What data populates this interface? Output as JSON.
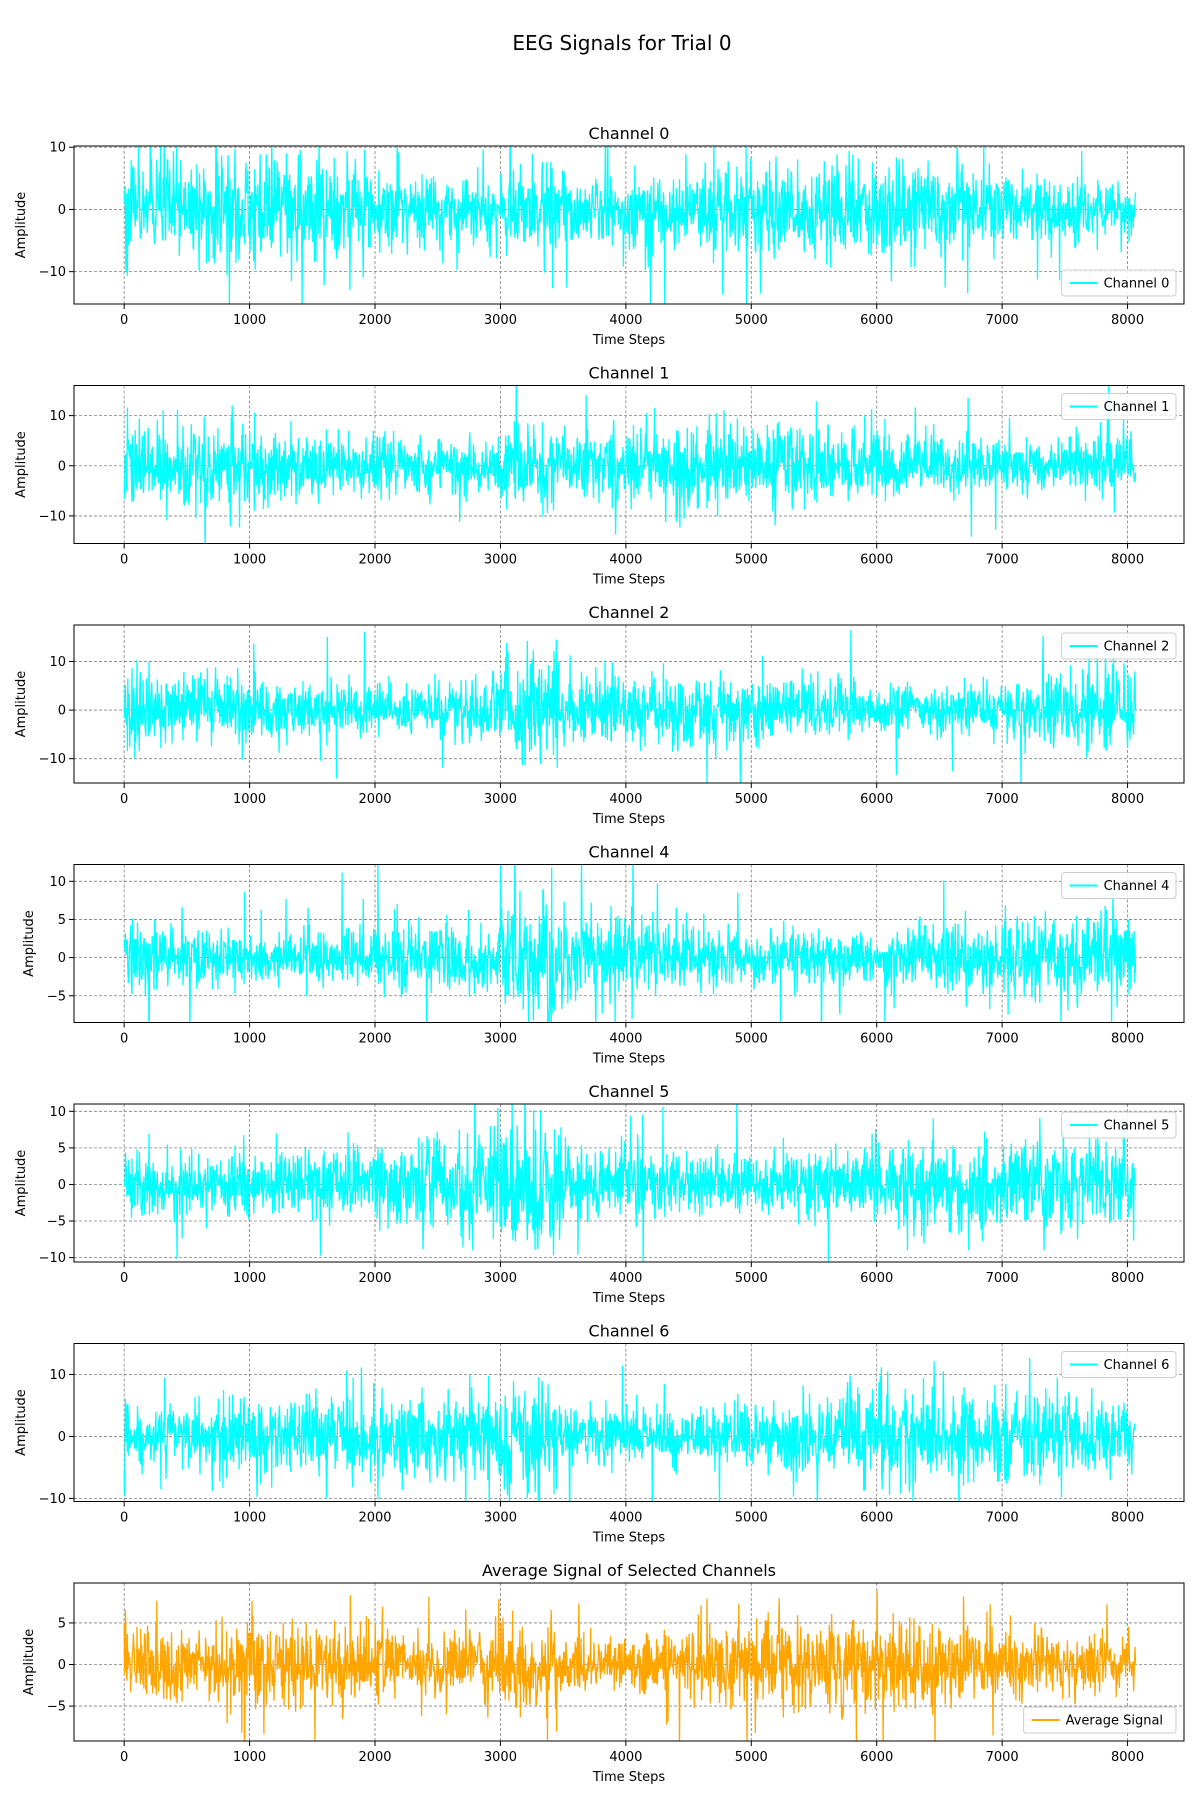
{
  "figure": {
    "title": "EEG Signals for Trial 0"
  },
  "chart_data": [
    {
      "type": "line",
      "title": "Channel 0",
      "xlabel": "Time Steps",
      "ylabel": "Amplitude",
      "xlim": [
        -400,
        8450
      ],
      "ylim": [
        -15.2,
        10.2
      ],
      "xticks": [
        0,
        1000,
        2000,
        3000,
        4000,
        5000,
        6000,
        7000,
        8000
      ],
      "yticks": [
        -10,
        0,
        10
      ],
      "grid": true,
      "legend": "lower right",
      "series": [
        {
          "name": "Channel 0",
          "color": "#00FFFF",
          "x_range": [
            0,
            8063
          ],
          "typical_amplitude": 4.5,
          "peak_range": [
            -15.2,
            10.2
          ]
        }
      ]
    },
    {
      "type": "line",
      "title": "Channel 1",
      "xlabel": "Time Steps",
      "ylabel": "Amplitude",
      "xlim": [
        -400,
        8450
      ],
      "ylim": [
        -15.5,
        16
      ],
      "xticks": [
        0,
        1000,
        2000,
        3000,
        4000,
        5000,
        6000,
        7000,
        8000
      ],
      "yticks": [
        -10,
        0,
        10
      ],
      "grid": true,
      "legend": "upper right",
      "series": [
        {
          "name": "Channel 1",
          "color": "#00FFFF",
          "x_range": [
            0,
            8063
          ],
          "typical_amplitude": 4.5,
          "peak_range": [
            -15.5,
            16
          ]
        }
      ]
    },
    {
      "type": "line",
      "title": "Channel 2",
      "xlabel": "Time Steps",
      "ylabel": "Amplitude",
      "xlim": [
        -400,
        8450
      ],
      "ylim": [
        -15,
        17.5
      ],
      "xticks": [
        0,
        1000,
        2000,
        3000,
        4000,
        5000,
        6000,
        7000,
        8000
      ],
      "yticks": [
        -10,
        0,
        10
      ],
      "grid": true,
      "legend": "upper right",
      "series": [
        {
          "name": "Channel 2",
          "color": "#00FFFF",
          "x_range": [
            0,
            8063
          ],
          "typical_amplitude": 4.5,
          "peak_range": [
            -15,
            17.5
          ]
        }
      ]
    },
    {
      "type": "line",
      "title": "Channel 4",
      "xlabel": "Time Steps",
      "ylabel": "Amplitude",
      "xlim": [
        -400,
        8450
      ],
      "ylim": [
        -8.5,
        12.2
      ],
      "xticks": [
        0,
        1000,
        2000,
        3000,
        4000,
        5000,
        6000,
        7000,
        8000
      ],
      "yticks": [
        -5,
        0,
        5,
        10
      ],
      "grid": true,
      "legend": "upper right",
      "series": [
        {
          "name": "Channel 4",
          "color": "#00FFFF",
          "x_range": [
            0,
            8063
          ],
          "typical_amplitude": 3.0,
          "peak_range": [
            -8.5,
            12.2
          ]
        }
      ]
    },
    {
      "type": "line",
      "title": "Channel 5",
      "xlabel": "Time Steps",
      "ylabel": "Amplitude",
      "xlim": [
        -400,
        8450
      ],
      "ylim": [
        -10.6,
        11
      ],
      "xticks": [
        0,
        1000,
        2000,
        3000,
        4000,
        5000,
        6000,
        7000,
        8000
      ],
      "yticks": [
        -10,
        -5,
        0,
        5,
        10
      ],
      "grid": true,
      "legend": "upper right",
      "series": [
        {
          "name": "Channel 5",
          "color": "#00FFFF",
          "x_range": [
            0,
            8063
          ],
          "typical_amplitude": 3.5,
          "peak_range": [
            -10.6,
            11
          ]
        }
      ]
    },
    {
      "type": "line",
      "title": "Channel 6",
      "xlabel": "Time Steps",
      "ylabel": "Amplitude",
      "xlim": [
        -400,
        8450
      ],
      "ylim": [
        -10.5,
        15
      ],
      "xticks": [
        0,
        1000,
        2000,
        3000,
        4000,
        5000,
        6000,
        7000,
        8000
      ],
      "yticks": [
        -10,
        0,
        10
      ],
      "grid": true,
      "legend": "upper right",
      "series": [
        {
          "name": "Channel 6",
          "color": "#00FFFF",
          "x_range": [
            0,
            8063
          ],
          "typical_amplitude": 4.0,
          "peak_range": [
            -10.5,
            15
          ]
        }
      ]
    },
    {
      "type": "line",
      "title": "Average Signal of Selected Channels",
      "xlabel": "Time Steps",
      "ylabel": "Amplitude",
      "xlim": [
        -400,
        8450
      ],
      "ylim": [
        -9.2,
        9.8
      ],
      "xticks": [
        0,
        1000,
        2000,
        3000,
        4000,
        5000,
        6000,
        7000,
        8000
      ],
      "yticks": [
        -5,
        0,
        5
      ],
      "grid": true,
      "legend": "lower right",
      "series": [
        {
          "name": "Average Signal",
          "color": "#FFA500",
          "x_range": [
            0,
            8063
          ],
          "typical_amplitude": 3.0,
          "peak_range": [
            -9.2,
            9.8
          ]
        }
      ]
    }
  ]
}
